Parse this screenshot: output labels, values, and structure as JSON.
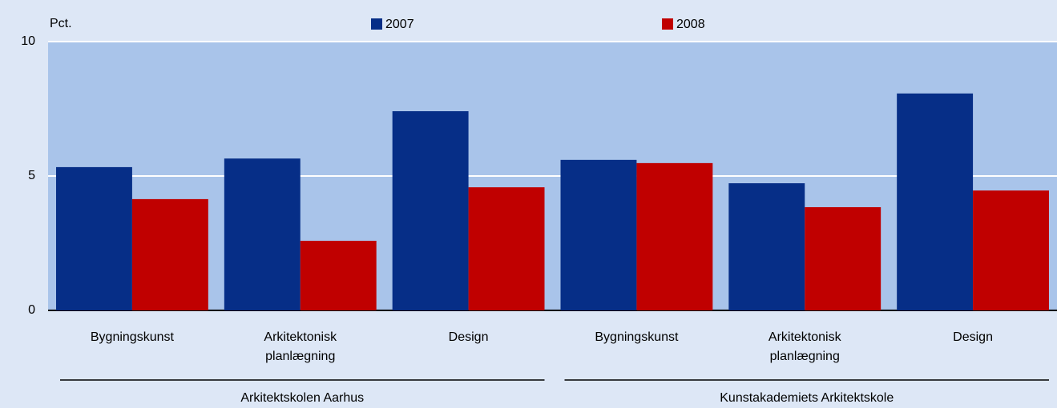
{
  "chart_data": {
    "type": "bar",
    "y_label": "Pct.",
    "categories": [
      "Bygningskunst",
      "Arkitektonisk planlægning",
      "Design",
      "Bygningskunst",
      "Arkitektonisk planlægning",
      "Design"
    ],
    "groups": [
      "Arkitektskolen Aarhus",
      "Kunstakademiets Arkitektskole"
    ],
    "series": [
      {
        "name": "2007",
        "color": "#062e87",
        "values": [
          5.33,
          5.65,
          7.41,
          5.6,
          4.73,
          8.07
        ]
      },
      {
        "name": "2008",
        "color": "#c00000",
        "values": [
          4.14,
          2.59,
          4.58,
          5.48,
          3.84,
          4.46
        ]
      }
    ],
    "ylim": [
      0,
      10
    ],
    "yticks": [
      0,
      5,
      10
    ],
    "grid": true
  }
}
